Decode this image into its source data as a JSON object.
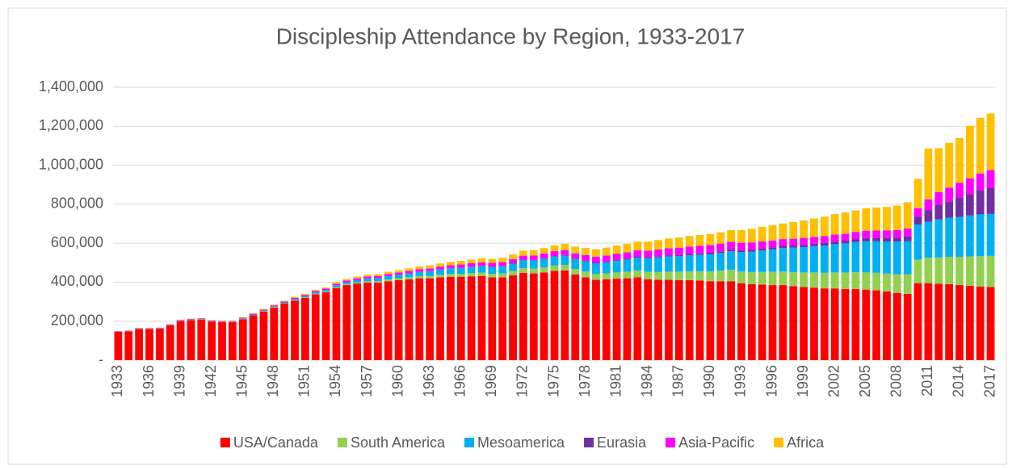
{
  "chart_data": {
    "type": "stacked_bar",
    "title": "Discipleship Attendance by Region, 1933-2017",
    "categories": [
      "1933",
      null,
      null,
      "1936",
      null,
      null,
      "1939",
      null,
      null,
      "1942",
      null,
      null,
      "1945",
      null,
      null,
      "1948",
      null,
      null,
      "1951",
      null,
      null,
      "1954",
      null,
      null,
      "1957",
      null,
      null,
      "1960",
      null,
      null,
      "1963",
      null,
      null,
      "1966",
      null,
      null,
      "1969",
      null,
      null,
      "1972",
      null,
      null,
      "1975",
      null,
      null,
      "1978",
      null,
      null,
      "1981",
      null,
      null,
      "1984",
      null,
      null,
      "1987",
      null,
      null,
      "1990",
      null,
      null,
      "1993",
      null,
      null,
      "1996",
      null,
      null,
      "1999",
      null,
      null,
      "2002",
      null,
      null,
      "2005",
      null,
      null,
      "2008",
      null,
      null,
      "2011",
      null,
      null,
      "2014",
      null,
      null,
      "2017"
    ],
    "series": [
      {
        "name": "USA/Canada",
        "color": "#ff0000",
        "values": [
          145000,
          148000,
          160000,
          160000,
          162000,
          178000,
          200000,
          205000,
          208000,
          198000,
          195000,
          195000,
          210000,
          230000,
          250000,
          270000,
          290000,
          305000,
          320000,
          338000,
          348000,
          370000,
          385000,
          393000,
          398000,
          398000,
          405000,
          410000,
          415000,
          420000,
          420000,
          425000,
          428000,
          428000,
          430000,
          432000,
          425000,
          425000,
          435000,
          448000,
          445000,
          450000,
          458000,
          460000,
          440000,
          425000,
          412000,
          415000,
          418000,
          420000,
          425000,
          415000,
          412000,
          412000,
          410000,
          410000,
          408000,
          405000,
          405000,
          405000,
          395000,
          390000,
          388000,
          385000,
          385000,
          380000,
          375000,
          372000,
          368000,
          368000,
          365000,
          365000,
          362000,
          358000,
          352000,
          345000,
          340000,
          395000,
          395000,
          392000,
          390000,
          385000,
          382000,
          378000,
          375000
        ]
      },
      {
        "name": "South America",
        "color": "#92d050",
        "values": [
          1000,
          1000,
          1000,
          1000,
          1000,
          1000,
          1000,
          1000,
          1000,
          1000,
          1000,
          1000,
          1000,
          1000,
          2000,
          2000,
          2000,
          3000,
          3000,
          3000,
          4000,
          5000,
          5000,
          6000,
          7000,
          8000,
          9000,
          10000,
          10000,
          11000,
          12000,
          13000,
          14000,
          15000,
          16000,
          17000,
          18000,
          20000,
          22000,
          24000,
          25000,
          26000,
          27000,
          28000,
          28000,
          30000,
          30000,
          30000,
          32000,
          34000,
          35000,
          38000,
          40000,
          42000,
          44000,
          46000,
          48000,
          50000,
          55000,
          58000,
          60000,
          62000,
          65000,
          68000,
          70000,
          72000,
          75000,
          78000,
          80000,
          82000,
          84000,
          86000,
          88000,
          90000,
          92000,
          95000,
          100000,
          120000,
          130000,
          135000,
          140000,
          145000,
          150000,
          155000,
          160000
        ]
      },
      {
        "name": "Mesoamerica",
        "color": "#00b0f0",
        "values": [
          1000,
          1000,
          1000,
          1000,
          1000,
          1000,
          2000,
          2000,
          2000,
          2000,
          2000,
          2000,
          3000,
          3000,
          3000,
          4000,
          4000,
          5000,
          6000,
          7000,
          8000,
          9000,
          10000,
          12000,
          14000,
          15000,
          17000,
          18000,
          20000,
          22000,
          24000,
          26000,
          28000,
          30000,
          32000,
          34000,
          35000,
          36000,
          38000,
          40000,
          42000,
          44000,
          46000,
          48000,
          50000,
          52000,
          55000,
          58000,
          60000,
          62000,
          65000,
          70000,
          75000,
          78000,
          80000,
          82000,
          85000,
          88000,
          90000,
          95000,
          100000,
          105000,
          110000,
          115000,
          120000,
          125000,
          130000,
          135000,
          140000,
          145000,
          150000,
          155000,
          160000,
          162000,
          165000,
          168000,
          170000,
          180000,
          185000,
          195000,
          200000,
          205000,
          210000,
          215000,
          215000
        ]
      },
      {
        "name": "Eurasia",
        "color": "#7030a0",
        "values": [
          0,
          0,
          0,
          0,
          0,
          0,
          0,
          0,
          0,
          0,
          0,
          0,
          0,
          0,
          0,
          0,
          0,
          0,
          0,
          0,
          0,
          0,
          0,
          0,
          0,
          0,
          0,
          0,
          0,
          0,
          1000,
          1000,
          1000,
          1000,
          1000,
          1000,
          2000,
          2000,
          2000,
          2000,
          2000,
          3000,
          3000,
          3000,
          3000,
          4000,
          4000,
          4000,
          5000,
          5000,
          5000,
          5000,
          6000,
          6000,
          6000,
          7000,
          7000,
          8000,
          8000,
          9000,
          9000,
          10000,
          10000,
          10000,
          11000,
          11000,
          12000,
          12000,
          13000,
          13000,
          14000,
          15000,
          16000,
          17000,
          18000,
          20000,
          25000,
          40000,
          60000,
          75000,
          85000,
          100000,
          110000,
          125000,
          135000
        ]
      },
      {
        "name": "Asia-Pacific",
        "color": "#ff00ff",
        "values": [
          2000,
          2000,
          2000,
          2000,
          2000,
          3000,
          3000,
          3000,
          3000,
          3000,
          3000,
          3000,
          4000,
          4000,
          4000,
          5000,
          5000,
          6000,
          6000,
          7000,
          7000,
          8000,
          8000,
          9000,
          10000,
          10000,
          11000,
          12000,
          13000,
          14000,
          14000,
          15000,
          16000,
          17000,
          18000,
          18000,
          19000,
          20000,
          21000,
          22000,
          23000,
          24000,
          25000,
          26000,
          27000,
          28000,
          30000,
          30000,
          31000,
          32000,
          33000,
          34000,
          35000,
          36000,
          37000,
          38000,
          39000,
          40000,
          40000,
          40000,
          38000,
          37000,
          36000,
          36000,
          35000,
          35000,
          35000,
          35000,
          35000,
          36000,
          36000,
          37000,
          38000,
          38000,
          39000,
          40000,
          40000,
          45000,
          55000,
          65000,
          70000,
          75000,
          80000,
          85000,
          90000
        ]
      },
      {
        "name": "Africa",
        "color": "#ffc000",
        "values": [
          1000,
          1000,
          1000,
          1000,
          1000,
          2000,
          2000,
          2000,
          2000,
          2000,
          2000,
          2000,
          3000,
          3000,
          3000,
          4000,
          4000,
          5000,
          5000,
          6000,
          6000,
          7000,
          8000,
          9000,
          10000,
          10000,
          11000,
          12000,
          13000,
          14000,
          15000,
          16000,
          17000,
          18000,
          19000,
          20000,
          21000,
          22000,
          24000,
          26000,
          27000,
          28000,
          30000,
          32000,
          34000,
          36000,
          38000,
          40000,
          42000,
          44000,
          45000,
          46000,
          48000,
          50000,
          52000,
          54000,
          55000,
          56000,
          58000,
          60000,
          65000,
          70000,
          75000,
          78000,
          80000,
          85000,
          90000,
          95000,
          100000,
          105000,
          108000,
          110000,
          115000,
          118000,
          120000,
          125000,
          135000,
          150000,
          260000,
          225000,
          230000,
          230000,
          270000,
          285000,
          290000
        ]
      }
    ],
    "ylim": [
      0,
      1400000
    ],
    "yticks": [
      {
        "value": 0,
        "label": "-"
      },
      {
        "value": 200000,
        "label": "200,000"
      },
      {
        "value": 400000,
        "label": "400,000"
      },
      {
        "value": 600000,
        "label": "600,000"
      },
      {
        "value": 800000,
        "label": "800,000"
      },
      {
        "value": 1000000,
        "label": "1,000,000"
      },
      {
        "value": 1200000,
        "label": "1,200,000"
      },
      {
        "value": 1400000,
        "label": "1,400,000"
      }
    ],
    "grid": true,
    "legend": "bottom"
  }
}
